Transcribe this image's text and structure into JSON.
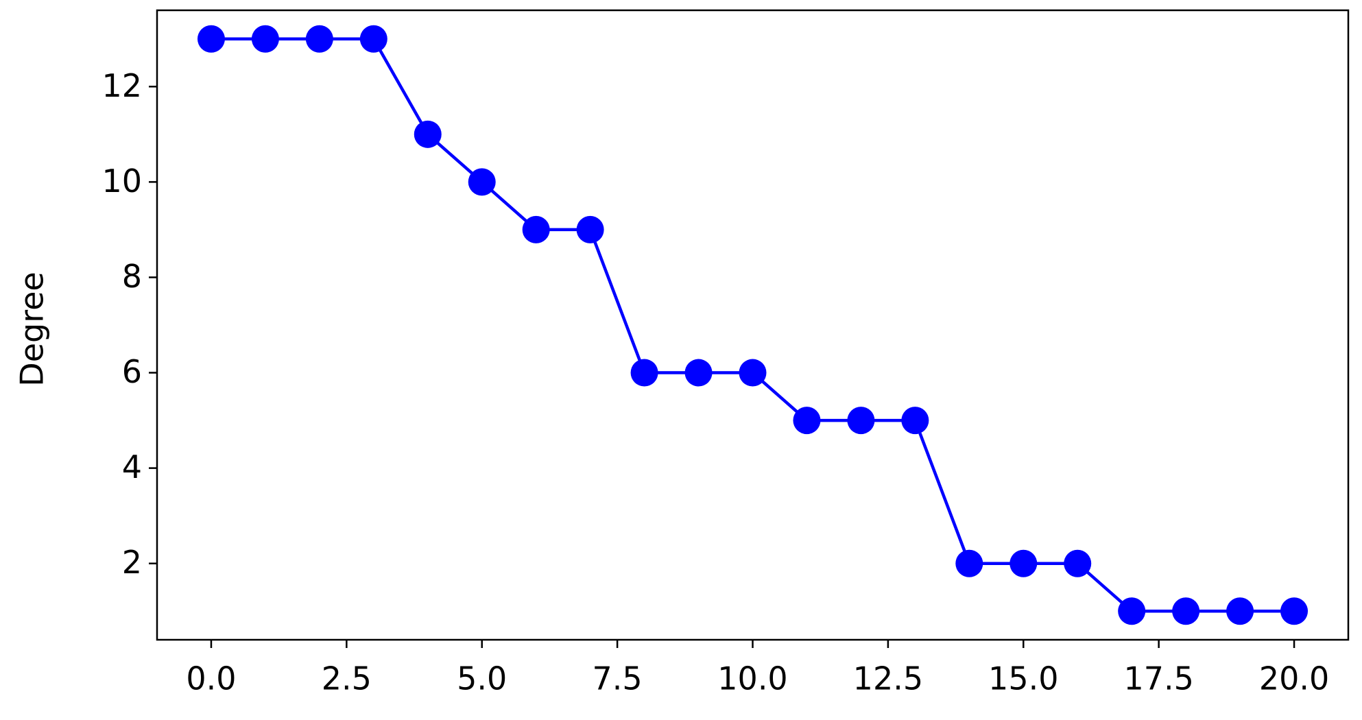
{
  "chart_data": {
    "type": "line",
    "y_label": "Degree",
    "x": [
      0,
      1,
      2,
      3,
      4,
      5,
      6,
      7,
      8,
      9,
      10,
      11,
      12,
      13,
      14,
      15,
      16,
      17,
      18,
      19,
      20
    ],
    "series": [
      {
        "color": "#0000ff",
        "values": [
          13,
          13,
          13,
          13,
          11,
          10,
          9,
          9,
          6,
          6,
          6,
          5,
          5,
          5,
          2,
          2,
          2,
          1,
          1,
          1,
          1
        ]
      }
    ],
    "xlim": [
      -1,
      21
    ],
    "ylim": [
      0.4,
      13.6
    ],
    "xticks": [
      {
        "value": 0,
        "label": "0.0"
      },
      {
        "value": 2.5,
        "label": "2.5"
      },
      {
        "value": 5,
        "label": "5.0"
      },
      {
        "value": 7.5,
        "label": "7.5"
      },
      {
        "value": 10,
        "label": "10.0"
      },
      {
        "value": 12.5,
        "label": "12.5"
      },
      {
        "value": 15,
        "label": "15.0"
      },
      {
        "value": 17.5,
        "label": "17.5"
      },
      {
        "value": 20,
        "label": "20.0"
      }
    ],
    "yticks": [
      2,
      4,
      6,
      8,
      10,
      12
    ]
  }
}
